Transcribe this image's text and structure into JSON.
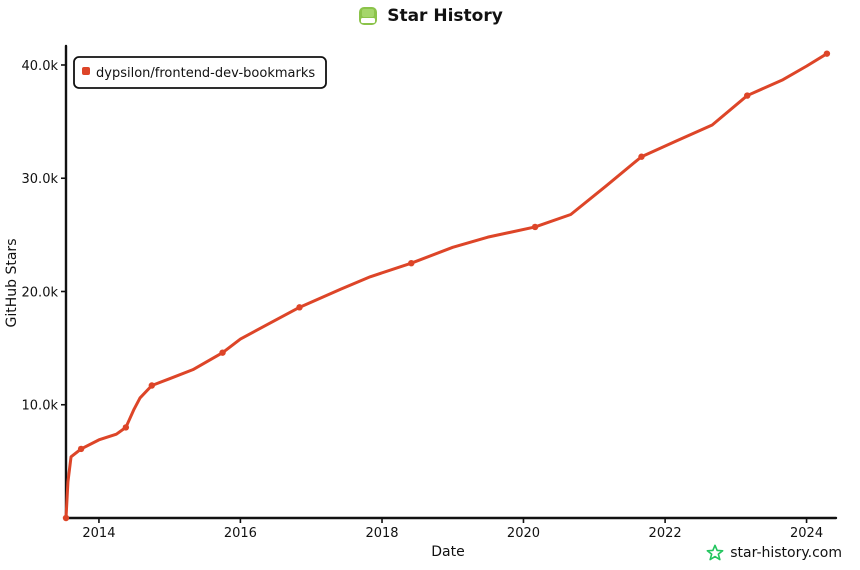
{
  "header": {
    "title": "Star History",
    "logo_icon": "star-history-logo-icon"
  },
  "watermark": {
    "text": "star-history.com",
    "icon": "star-outline-icon",
    "icon_color": "#22c55e"
  },
  "chart_data": {
    "type": "line",
    "title": "Star History",
    "xlabel": "Date",
    "ylabel": "GitHub Stars",
    "x_type": "date",
    "xlim": [
      "2013-07-15",
      "2024-05-01"
    ],
    "ylim": [
      0,
      41500
    ],
    "x_ticks": [
      {
        "value": "2014-01-01",
        "label": "2014"
      },
      {
        "value": "2016-01-01",
        "label": "2016"
      },
      {
        "value": "2018-01-01",
        "label": "2018"
      },
      {
        "value": "2020-01-01",
        "label": "2020"
      },
      {
        "value": "2022-01-01",
        "label": "2022"
      },
      {
        "value": "2024-01-01",
        "label": "2024"
      }
    ],
    "y_ticks": [
      {
        "value": 10000,
        "label": "10.0k"
      },
      {
        "value": 20000,
        "label": "20.0k"
      },
      {
        "value": 30000,
        "label": "30.0k"
      },
      {
        "value": 40000,
        "label": "40.0k"
      }
    ],
    "grid": false,
    "legend_position": "top-left",
    "series": [
      {
        "name": "dypsilon/frontend-dev-bookmarks",
        "color": "#dd4528",
        "points": [
          {
            "x": "2013-07-15",
            "y": 0
          },
          {
            "x": "2013-07-25",
            "y": 3200
          },
          {
            "x": "2013-08-10",
            "y": 5400
          },
          {
            "x": "2013-10-01",
            "y": 6100
          },
          {
            "x": "2014-01-01",
            "y": 6900
          },
          {
            "x": "2014-04-01",
            "y": 7400
          },
          {
            "x": "2014-05-20",
            "y": 8000
          },
          {
            "x": "2014-07-01",
            "y": 9600
          },
          {
            "x": "2014-08-01",
            "y": 10600
          },
          {
            "x": "2014-10-01",
            "y": 11700
          },
          {
            "x": "2015-01-01",
            "y": 12300
          },
          {
            "x": "2015-05-01",
            "y": 13100
          },
          {
            "x": "2015-10-01",
            "y": 14600
          },
          {
            "x": "2016-01-01",
            "y": 15800
          },
          {
            "x": "2016-06-01",
            "y": 17200
          },
          {
            "x": "2016-11-01",
            "y": 18600
          },
          {
            "x": "2017-06-01",
            "y": 20200
          },
          {
            "x": "2017-11-01",
            "y": 21300
          },
          {
            "x": "2018-06-01",
            "y": 22500
          },
          {
            "x": "2019-01-01",
            "y": 23900
          },
          {
            "x": "2019-07-01",
            "y": 24800
          },
          {
            "x": "2020-03-01",
            "y": 25700
          },
          {
            "x": "2020-09-01",
            "y": 26800
          },
          {
            "x": "2021-03-01",
            "y": 29300
          },
          {
            "x": "2021-09-01",
            "y": 31900
          },
          {
            "x": "2022-03-01",
            "y": 33300
          },
          {
            "x": "2022-09-01",
            "y": 34700
          },
          {
            "x": "2023-03-01",
            "y": 37300
          },
          {
            "x": "2023-09-01",
            "y": 38700
          },
          {
            "x": "2024-01-01",
            "y": 39900
          },
          {
            "x": "2024-04-15",
            "y": 41000
          }
        ]
      }
    ]
  }
}
